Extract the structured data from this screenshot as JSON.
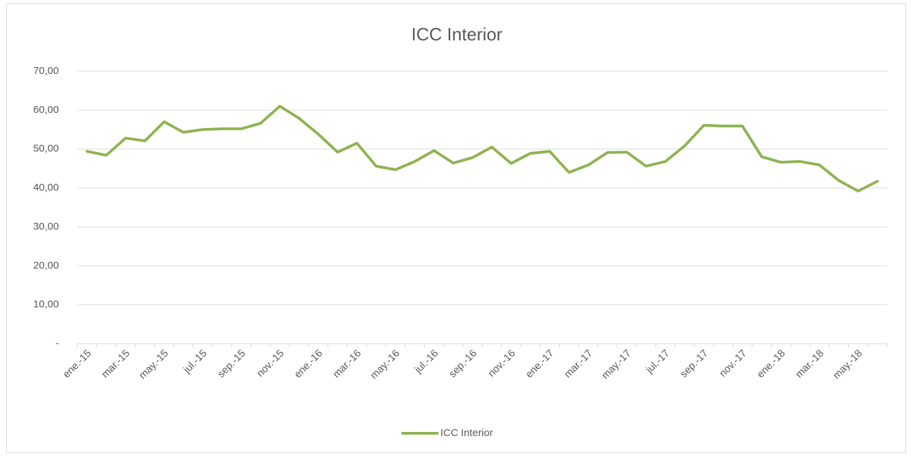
{
  "chart_data": {
    "type": "line",
    "title": "ICC Interior",
    "categories": [
      "ene.-15",
      null,
      "mar.-15",
      null,
      "may.-15",
      null,
      "jul.-15",
      null,
      "sep.-15",
      null,
      "nov.-15",
      null,
      "ene.-16",
      null,
      "mar.-16",
      null,
      "may.-16",
      null,
      "jul.-16",
      null,
      "sep.-16",
      null,
      "nov.-16",
      null,
      "ene.-17",
      null,
      "mar.-17",
      null,
      "may.-17",
      null,
      "jul.-17",
      null,
      "sep.-17",
      null,
      "nov.-17",
      null,
      "ene.-18",
      null,
      "mar.-18",
      null,
      "may.-18",
      null
    ],
    "series": [
      {
        "name": "ICC Interior",
        "color": "#8fb352",
        "values": [
          49.4,
          48.4,
          52.8,
          52.1,
          57.0,
          54.3,
          55.0,
          55.2,
          55.2,
          56.6,
          61.0,
          57.9,
          53.8,
          49.2,
          51.5,
          45.6,
          44.7,
          46.8,
          49.6,
          46.4,
          47.8,
          50.5,
          46.3,
          48.9,
          49.4,
          44.0,
          45.9,
          49.1,
          49.2,
          45.6,
          46.8,
          50.8,
          56.1,
          55.9,
          55.9,
          48.0,
          46.6,
          46.8,
          45.9,
          41.9,
          39.2,
          41.7
        ]
      }
    ],
    "ylim": [
      0,
      70
    ],
    "yticks": [
      {
        "value": 0,
        "label": "-"
      },
      {
        "value": 10,
        "label": "10,00"
      },
      {
        "value": 20,
        "label": "20,00"
      },
      {
        "value": 30,
        "label": "30,00"
      },
      {
        "value": 40,
        "label": "40,00"
      },
      {
        "value": 50,
        "label": "50,00"
      },
      {
        "value": 60,
        "label": "60,00"
      },
      {
        "value": 70,
        "label": "70,00"
      }
    ],
    "grid": true,
    "legend": "bottom"
  }
}
